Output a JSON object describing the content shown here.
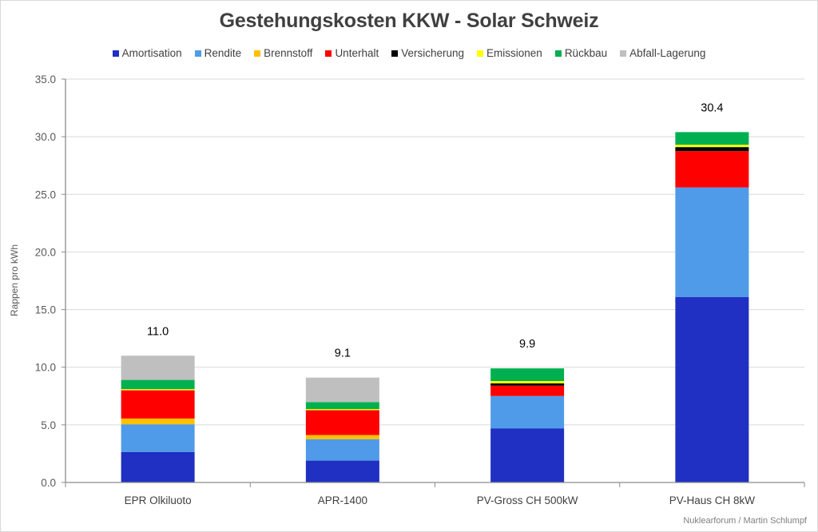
{
  "chart_data": {
    "type": "bar",
    "stacked": true,
    "title": "Gestehungskosten KKW - Solar Schweiz",
    "xlabel": "",
    "ylabel": "Rappen pro kWh",
    "ylim": [
      0,
      35
    ],
    "yticks": [
      "0.0",
      "5.0",
      "10.0",
      "15.0",
      "20.0",
      "25.0",
      "30.0",
      "35.0"
    ],
    "ytick_values": [
      0,
      5,
      10,
      15,
      20,
      25,
      30,
      35
    ],
    "grid": true,
    "legend_position": "top",
    "categories": [
      "EPR Olkiluoto",
      "APR-1400",
      "PV-Gross CH 500kW",
      "PV-Haus CH 8kW"
    ],
    "totals": [
      "11.0",
      "9.1",
      "9.9",
      "30.4"
    ],
    "series": [
      {
        "name": "Amortisation",
        "color": "#1f30c2",
        "values": [
          2.65,
          1.9,
          4.7,
          16.1
        ]
      },
      {
        "name": "Rendite",
        "color": "#509be9",
        "values": [
          2.4,
          1.85,
          2.8,
          9.5
        ]
      },
      {
        "name": "Brennstoff",
        "color": "#ffc000",
        "values": [
          0.5,
          0.37,
          0.0,
          0.0
        ]
      },
      {
        "name": "Unterhalt",
        "color": "#ff0000",
        "values": [
          2.45,
          2.15,
          0.9,
          3.15
        ]
      },
      {
        "name": "Versicherung",
        "color": "#000000",
        "values": [
          0.0,
          0.0,
          0.2,
          0.35
        ]
      },
      {
        "name": "Emissionen",
        "color": "#ffff00",
        "values": [
          0.1,
          0.1,
          0.2,
          0.2
        ]
      },
      {
        "name": "Rückbau",
        "color": "#00b050",
        "values": [
          0.8,
          0.6,
          1.1,
          1.1
        ]
      },
      {
        "name": "Abfall-Lagerung",
        "color": "#bfbfbf",
        "values": [
          2.1,
          2.13,
          0.0,
          0.0
        ]
      }
    ]
  },
  "credit": "Nuklearforum / Martin Schlumpf"
}
